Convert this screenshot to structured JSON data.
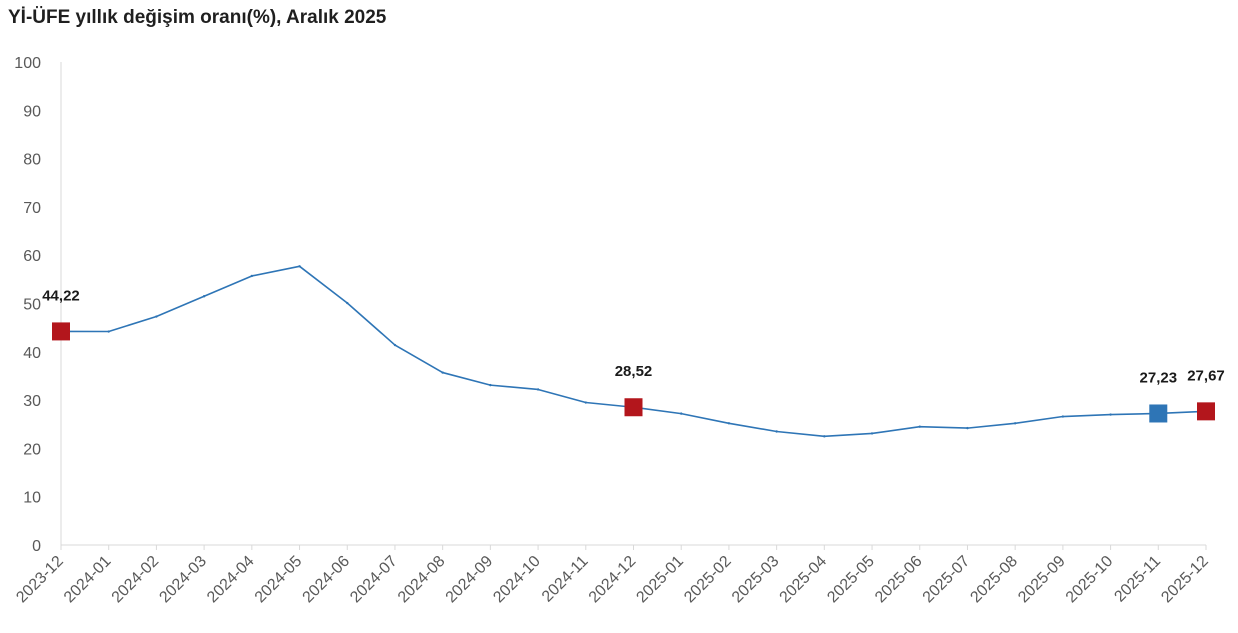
{
  "chart_data": {
    "type": "line",
    "title": "Yİ-ÜFE yıllık değişim oranı(%), Aralık 2025",
    "xlabel": "",
    "ylabel": "",
    "ylim": [
      0,
      100
    ],
    "yticks": [
      0,
      10,
      20,
      30,
      40,
      50,
      60,
      70,
      80,
      90,
      100
    ],
    "grid": false,
    "legend": "none",
    "categories": [
      "2023-12",
      "2024-01",
      "2024-02",
      "2024-03",
      "2024-04",
      "2024-05",
      "2024-06",
      "2024-07",
      "2024-08",
      "2024-09",
      "2024-10",
      "2024-11",
      "2024-12",
      "2025-01",
      "2025-02",
      "2025-03",
      "2025-04",
      "2025-05",
      "2025-06",
      "2025-07",
      "2025-08",
      "2025-09",
      "2025-10",
      "2025-11",
      "2025-12"
    ],
    "series": [
      {
        "color": "#2e75b6",
        "values": [
          44.22,
          44.2,
          47.3,
          51.5,
          55.7,
          57.7,
          50.1,
          41.4,
          35.7,
          33.1,
          32.2,
          29.5,
          28.52,
          27.2,
          25.2,
          23.5,
          22.5,
          23.1,
          24.5,
          24.2,
          25.2,
          26.6,
          27.0,
          27.23,
          27.67
        ]
      }
    ],
    "highlighted_points": [
      {
        "category": "2023-12",
        "value": 44.22,
        "label": "44,22",
        "color": "#b3161c"
      },
      {
        "category": "2024-12",
        "value": 28.52,
        "label": "28,52",
        "color": "#b3161c"
      },
      {
        "category": "2025-11",
        "value": 27.23,
        "label": "27,23",
        "color": "#2e75b6"
      },
      {
        "category": "2025-12",
        "value": 27.67,
        "label": "27,67",
        "color": "#b3161c"
      }
    ]
  }
}
